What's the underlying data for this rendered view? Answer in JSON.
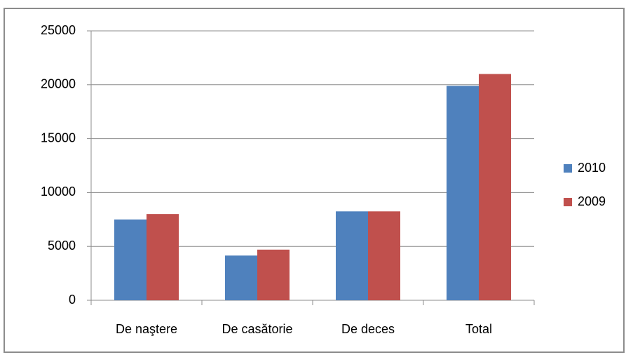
{
  "chart_data": {
    "type": "bar",
    "categories": [
      "De naştere",
      "De casătorie",
      "De deces",
      "Total"
    ],
    "series": [
      {
        "name": "2010",
        "color": "#4f81bd",
        "values": [
          7500,
          4150,
          8250,
          19900
        ]
      },
      {
        "name": "2009",
        "color": "#c0504d",
        "values": [
          8000,
          4700,
          8250,
          21000
        ]
      }
    ],
    "ylim": [
      0,
      25000
    ],
    "yticks": [
      0,
      5000,
      10000,
      15000,
      20000,
      25000
    ],
    "grid": true,
    "legend": "right"
  }
}
